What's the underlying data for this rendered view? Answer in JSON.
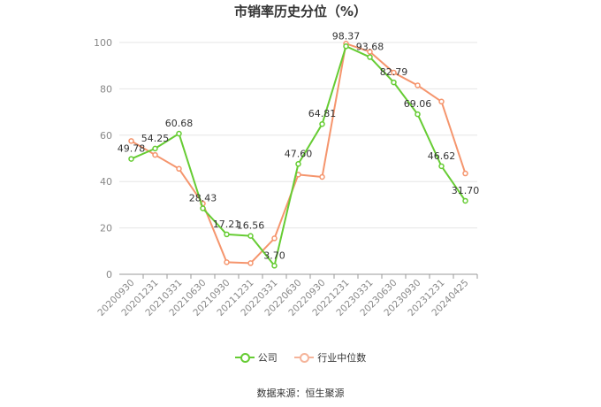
{
  "chart_data": {
    "type": "line",
    "title": "市销率历史分位（%）",
    "categories": [
      "20200930",
      "20201231",
      "20210331",
      "20210630",
      "20210930",
      "20211231",
      "20220331",
      "20220630",
      "20220930",
      "20221231",
      "20230331",
      "20230630",
      "20230930",
      "20231231",
      "20240425"
    ],
    "series": [
      {
        "name": "公司",
        "color": "#66cc33",
        "values": [
          49.78,
          54.25,
          60.68,
          28.43,
          17.21,
          16.56,
          3.7,
          47.6,
          64.81,
          98.37,
          93.68,
          82.79,
          69.06,
          46.62,
          31.7
        ],
        "labels": [
          "49.78",
          "54.25",
          "60.68",
          "28.43",
          "17.21",
          "16.56",
          "3.70",
          "47.60",
          "64.81",
          "98.37",
          "93.68",
          "82.79",
          "69.06",
          "46.62",
          "31.70"
        ]
      },
      {
        "name": "行业中位数",
        "color": "#f5956d",
        "values": [
          57.5,
          51.5,
          45.5,
          30.5,
          5.2,
          4.8,
          15.5,
          43.0,
          42.0,
          99.5,
          96.0,
          87.0,
          81.5,
          74.5,
          43.5
        ]
      }
    ],
    "yticks": [
      "0",
      "20",
      "40",
      "60",
      "80",
      "100"
    ],
    "ylim": [
      0,
      100
    ],
    "grid": true,
    "legend_position": "bottom"
  },
  "source": "数据来源：恒生聚源"
}
